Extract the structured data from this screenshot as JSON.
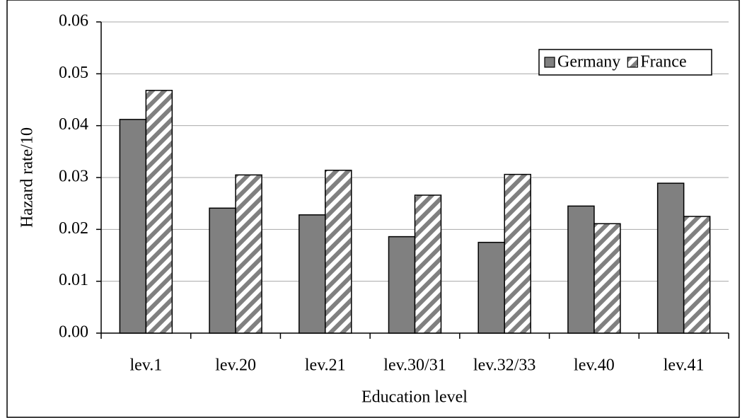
{
  "chart_data": {
    "type": "bar",
    "x_label": "Education level",
    "y_label": "Hazard rate/10",
    "categories": [
      "lev.1",
      "lev.20",
      "lev.21",
      "lev.30/31",
      "lev.32/33",
      "lev.40",
      "lev.41"
    ],
    "series": [
      {
        "name": "Germany",
        "color": "#808080",
        "values": [
          0.0412,
          0.0241,
          0.0228,
          0.0186,
          0.0175,
          0.0245,
          0.0289
        ]
      },
      {
        "name": "France",
        "color": "#808080",
        "pattern": "diagonal-hatch",
        "values": [
          0.0468,
          0.0305,
          0.0314,
          0.0266,
          0.0306,
          0.0211,
          0.0225
        ]
      }
    ],
    "ylim": [
      0,
      0.06
    ],
    "yticks": [
      {
        "value": 0,
        "label": "0.00"
      },
      0.01,
      0.02,
      0.03,
      0.04,
      0.05,
      0.06
    ],
    "grid": true,
    "legend": "top-right"
  }
}
